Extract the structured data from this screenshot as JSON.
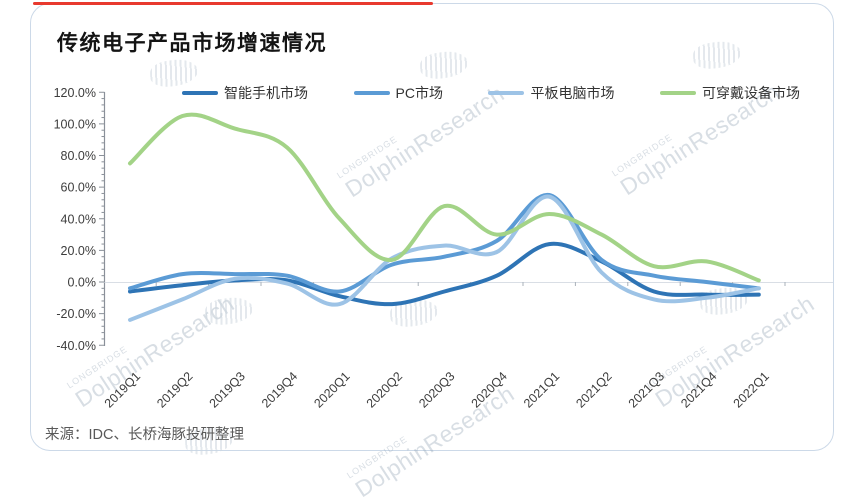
{
  "page": {
    "title": "传统电子产品市场增速情况",
    "source": "来源：IDC、长桥海豚投研整理",
    "accent_color": "#e8392e"
  },
  "watermark": {
    "brand_small": "LONGBRIDGE",
    "brand_large": "DolphinResearch"
  },
  "chart_data": {
    "type": "line",
    "title": "传统电子产品市场增速情况",
    "categories": [
      "2019Q1",
      "2019Q2",
      "2019Q3",
      "2019Q4",
      "2020Q1",
      "2020Q2",
      "2020Q3",
      "2020Q4",
      "2021Q1",
      "2021Q2",
      "2021Q3",
      "2021Q4",
      "2022Q1"
    ],
    "series": [
      {
        "name": "智能手机市场",
        "color": "#2e74b5",
        "values": [
          -6,
          -2,
          1,
          1,
          -9,
          -14,
          -6,
          4,
          24,
          13,
          -6,
          -8,
          -8
        ]
      },
      {
        "name": "PC市场",
        "color": "#5b9bd5",
        "values": [
          -4,
          5,
          5,
          4,
          -6,
          11,
          16,
          26,
          55,
          14,
          4,
          0,
          -4
        ]
      },
      {
        "name": "平板电脑市场",
        "color": "#9dc3e6",
        "values": [
          -24,
          -11,
          2,
          -1,
          -14,
          15,
          23,
          19,
          54,
          6,
          -11,
          -10,
          -4
        ]
      },
      {
        "name": "可穿戴设备市场",
        "color": "#a3d387",
        "values": [
          75,
          105,
          97,
          85,
          40,
          14,
          48,
          30,
          43,
          30,
          10,
          13,
          1
        ]
      }
    ],
    "ylabel": "",
    "xlabel": "",
    "ylim": [
      -40,
      120
    ],
    "ytick_step": 20,
    "ytick_labels": [
      "120.0%",
      "100.0%",
      "80.0%",
      "60.0%",
      "40.0%",
      "20.0%",
      "0.0%",
      "-20.0%",
      "-40.0%"
    ],
    "unit": "percent YoY growth",
    "grid": "zero-line-only",
    "legend_position": "top"
  }
}
